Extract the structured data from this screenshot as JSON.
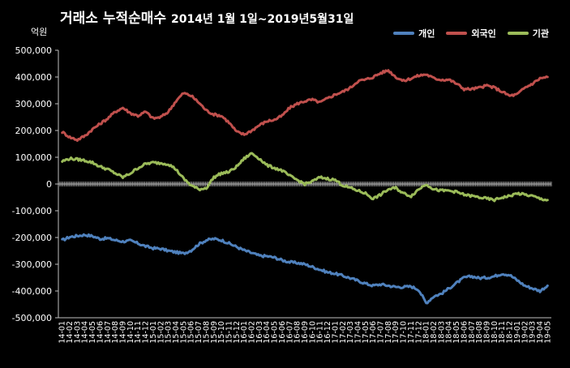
{
  "chart_data": {
    "type": "line",
    "title": "거래소 누적순매수",
    "subtitle": "2014년 1월 1일~2019년5월31일",
    "ylabel": "억원",
    "ylim": [
      -500000,
      500000
    ],
    "yticks": [
      500000,
      400000,
      300000,
      200000,
      100000,
      0,
      -100000,
      -200000,
      -300000,
      -400000,
      -500000
    ],
    "ytick_labels": [
      "500,000",
      "400,000",
      "300,000",
      "200,000",
      "100,000",
      "0",
      "-100,000",
      "-200,000",
      "-300,000",
      "-400,000",
      "-500,000"
    ],
    "x_tick_labels": [
      "14-01",
      "14-02",
      "14-03",
      "14-04",
      "14-05",
      "14-06",
      "14-07",
      "14-08",
      "14-09",
      "14-10",
      "14-11",
      "14-12",
      "15-01",
      "15-02",
      "15-03",
      "15-04",
      "15-05",
      "15-06",
      "15-07",
      "15-08",
      "15-09",
      "15-10",
      "15-11",
      "15-12",
      "16-01",
      "16-02",
      "16-03",
      "16-04",
      "16-05",
      "16-06",
      "16-07",
      "16-08",
      "16-09",
      "16-10",
      "16-11",
      "16-12",
      "17-01",
      "17-02",
      "17-03",
      "17-04",
      "17-05",
      "17-06",
      "17-07",
      "17-08",
      "17-09",
      "17-10",
      "17-11",
      "17-12",
      "18-01",
      "18-02",
      "18-03",
      "18-04",
      "18-05",
      "18-06",
      "18-07",
      "18-08",
      "18-09",
      "18-10",
      "18-11",
      "18-12",
      "19-01",
      "19-02",
      "19-03",
      "19-04",
      "19-05"
    ],
    "legend_position": "top-right",
    "grid": false,
    "series": [
      {
        "name": "개인",
        "color": "#4F81BD",
        "values": [
          -210000,
          -198000,
          -194000,
          -190000,
          -195000,
          -205000,
          -203000,
          -210000,
          -215000,
          -212000,
          -222000,
          -233000,
          -240000,
          -242000,
          -250000,
          -255000,
          -260000,
          -248000,
          -225000,
          -210000,
          -205000,
          -210000,
          -222000,
          -235000,
          -248000,
          -258000,
          -268000,
          -270000,
          -275000,
          -285000,
          -292000,
          -295000,
          -300000,
          -310000,
          -320000,
          -330000,
          -335000,
          -343000,
          -352000,
          -362000,
          -372000,
          -380000,
          -375000,
          -380000,
          -385000,
          -385000,
          -383000,
          -395000,
          -445000,
          -420000,
          -410000,
          -390000,
          -370000,
          -350000,
          -345000,
          -352000,
          -350000,
          -345000,
          -335000,
          -340000,
          -360000,
          -380000,
          -390000,
          -400000,
          -380000
        ]
      },
      {
        "name": "외국인",
        "color": "#C0504D",
        "values": [
          195000,
          175000,
          165000,
          180000,
          205000,
          225000,
          245000,
          270000,
          285000,
          265000,
          255000,
          270000,
          245000,
          250000,
          270000,
          310000,
          340000,
          330000,
          305000,
          275000,
          260000,
          255000,
          230000,
          195000,
          185000,
          200000,
          220000,
          235000,
          240000,
          255000,
          285000,
          300000,
          310000,
          315000,
          305000,
          320000,
          335000,
          345000,
          360000,
          385000,
          390000,
          400000,
          415000,
          425000,
          400000,
          385000,
          395000,
          405000,
          410000,
          395000,
          390000,
          390000,
          375000,
          355000,
          355000,
          360000,
          368000,
          360000,
          345000,
          330000,
          335000,
          360000,
          375000,
          395000,
          400000
        ]
      },
      {
        "name": "기관",
        "color": "#9BBB59",
        "values": [
          85000,
          95000,
          92000,
          88000,
          80000,
          65000,
          55000,
          40000,
          25000,
          40000,
          60000,
          75000,
          80000,
          78000,
          75000,
          55000,
          20000,
          -5000,
          -20000,
          -15000,
          25000,
          40000,
          45000,
          65000,
          95000,
          115000,
          95000,
          70000,
          60000,
          50000,
          30000,
          15000,
          0,
          10000,
          25000,
          20000,
          15000,
          -5000,
          -15000,
          -25000,
          -35000,
          -55000,
          -40000,
          -20000,
          -15000,
          -35000,
          -45000,
          -20000,
          0,
          -20000,
          -25000,
          -25000,
          -30000,
          -40000,
          -45000,
          -50000,
          -55000,
          -60000,
          -50000,
          -45000,
          -35000,
          -40000,
          -45000,
          -55000,
          -60000
        ]
      }
    ]
  }
}
